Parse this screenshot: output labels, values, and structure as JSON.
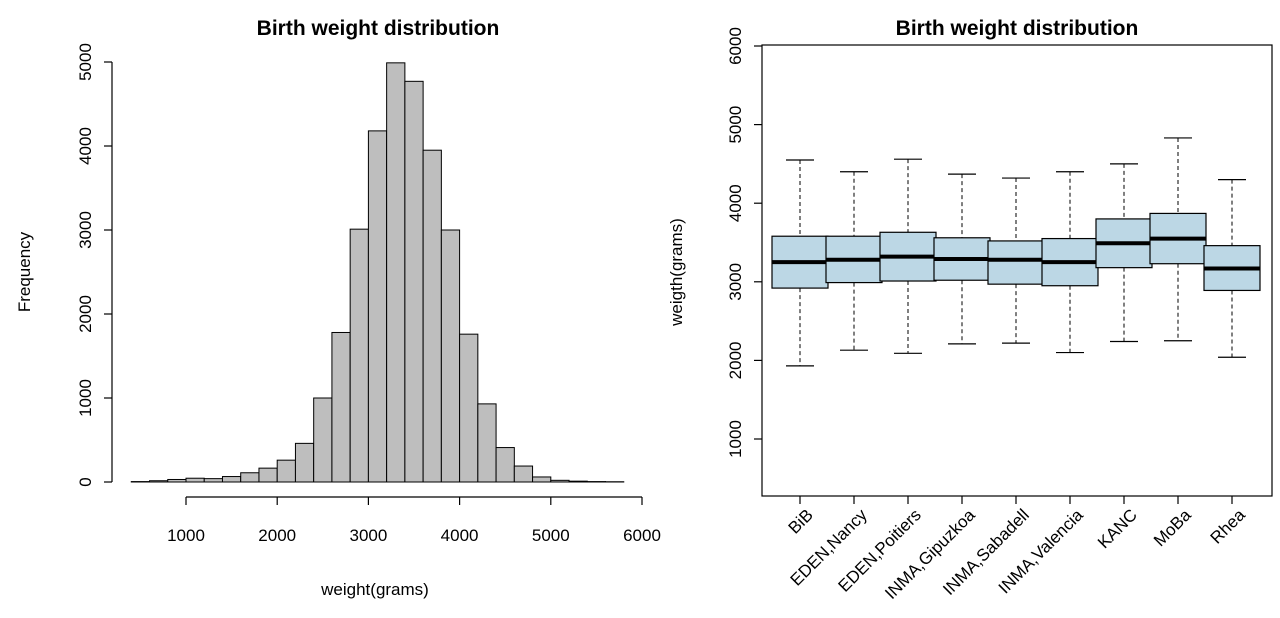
{
  "chart_data": [
    {
      "type": "bar",
      "title": "Birth weight distribution",
      "xlabel": "weight(grams)",
      "ylabel": "Frequency",
      "xlim": [
        400,
        5800
      ],
      "ylim": [
        0,
        5000
      ],
      "xticks": [
        1000,
        2000,
        3000,
        4000,
        5000,
        6000
      ],
      "yticks": [
        0,
        1000,
        2000,
        3000,
        4000,
        5000
      ],
      "bin_width": 200,
      "bin_start": 400,
      "values": [
        5,
        15,
        30,
        45,
        40,
        65,
        110,
        165,
        260,
        460,
        1000,
        1780,
        3010,
        4180,
        4990,
        4770,
        3950,
        3000,
        1760,
        930,
        410,
        190,
        60,
        20,
        10,
        5,
        3
      ],
      "bar_color": "#bebebe",
      "grid": false
    },
    {
      "type": "boxplot",
      "title": "Birth weight distribution",
      "xlabel": "",
      "ylabel": "weigth(grams)",
      "ylim": [
        200,
        6000
      ],
      "yticks": [
        1000,
        2000,
        3000,
        4000,
        5000,
        6000
      ],
      "categories": [
        "BiB",
        "EDEN,Nancy",
        "EDEN,Poitiers",
        "INMA,Gipuzkoa",
        "INMA,Sabadell",
        "INMA,Valencia",
        "KANC",
        "MoBa",
        "Rhea"
      ],
      "boxes": [
        {
          "min": 1930,
          "q1": 2920,
          "median": 3250,
          "q3": 3580,
          "max": 4550
        },
        {
          "min": 2130,
          "q1": 2990,
          "median": 3280,
          "q3": 3580,
          "max": 4400
        },
        {
          "min": 2090,
          "q1": 3010,
          "median": 3320,
          "q3": 3630,
          "max": 4560
        },
        {
          "min": 2210,
          "q1": 3020,
          "median": 3290,
          "q3": 3560,
          "max": 4370
        },
        {
          "min": 2220,
          "q1": 2970,
          "median": 3280,
          "q3": 3520,
          "max": 4320
        },
        {
          "min": 2100,
          "q1": 2950,
          "median": 3250,
          "q3": 3550,
          "max": 4400
        },
        {
          "min": 2240,
          "q1": 3180,
          "median": 3490,
          "q3": 3800,
          "max": 4500
        },
        {
          "min": 2250,
          "q1": 3230,
          "median": 3550,
          "q3": 3870,
          "max": 4830
        },
        {
          "min": 2040,
          "q1": 2890,
          "median": 3170,
          "q3": 3460,
          "max": 4300
        }
      ],
      "box_color": "#bcd7e5",
      "grid": false
    }
  ]
}
